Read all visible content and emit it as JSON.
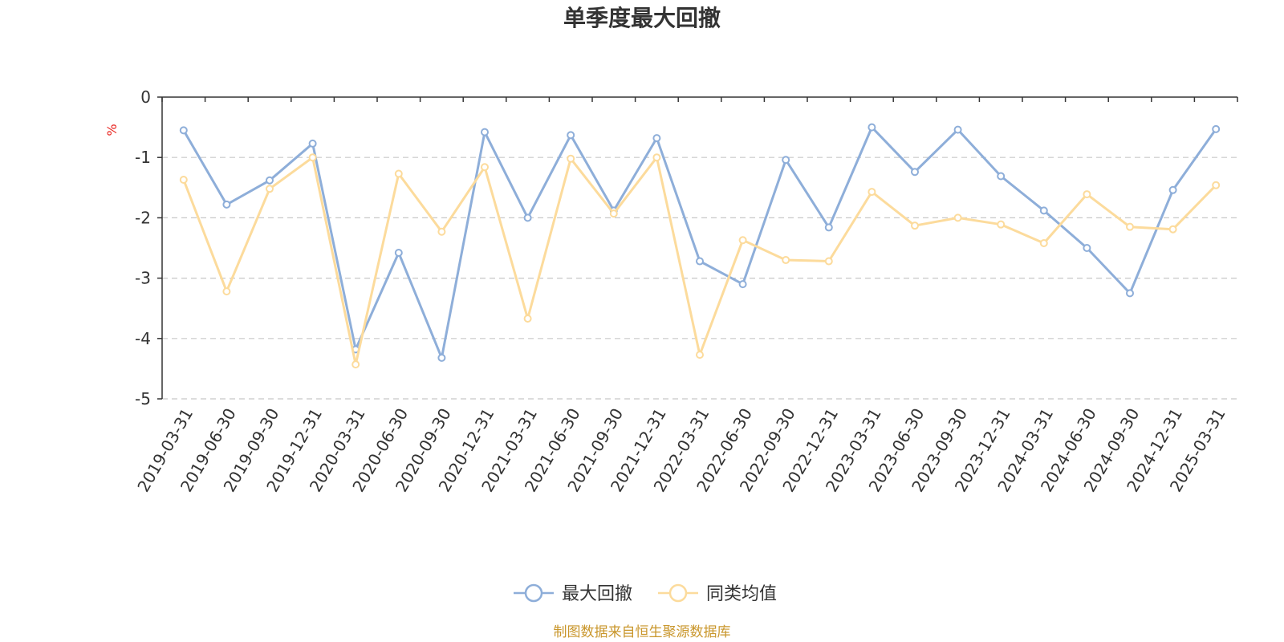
{
  "chart_data": {
    "type": "line",
    "title": "单季度最大回撤",
    "ylabel": "%",
    "ylim": [
      -5,
      0
    ],
    "yticks": [
      0,
      -1,
      -2,
      -3,
      -4,
      -5
    ],
    "grid": "horizontal-dashed",
    "legend_position": "bottom",
    "categories": [
      "2019-03-31",
      "2019-06-30",
      "2019-09-30",
      "2019-12-31",
      "2020-03-31",
      "2020-06-30",
      "2020-09-30",
      "2020-12-31",
      "2021-03-31",
      "2021-06-30",
      "2021-09-30",
      "2021-12-31",
      "2022-03-31",
      "2022-06-30",
      "2022-09-30",
      "2022-12-31",
      "2023-03-31",
      "2023-06-30",
      "2023-09-30",
      "2023-12-31",
      "2024-03-31",
      "2024-06-30",
      "2024-09-30",
      "2024-12-31",
      "2025-03-31"
    ],
    "series": [
      {
        "name": "最大回撤",
        "color": "#8eaed9",
        "values": [
          -0.55,
          -1.78,
          -1.38,
          -0.77,
          -4.18,
          -2.58,
          -4.32,
          -0.58,
          -2.0,
          -0.63,
          -1.88,
          -0.68,
          -2.72,
          -3.1,
          -1.04,
          -2.16,
          -0.5,
          -1.24,
          -0.54,
          -1.31,
          -1.88,
          -2.5,
          -3.25,
          -1.54,
          -0.53
        ]
      },
      {
        "name": "同类均值",
        "color": "#fcdb9c",
        "values": [
          -1.37,
          -3.22,
          -1.52,
          -1.0,
          -4.43,
          -1.27,
          -2.23,
          -1.16,
          -3.67,
          -1.02,
          -1.93,
          -1.0,
          -4.27,
          -2.37,
          -2.7,
          -2.72,
          -1.57,
          -2.13,
          -2.0,
          -2.11,
          -2.42,
          -1.61,
          -2.15,
          -2.19,
          -1.46
        ]
      }
    ]
  },
  "footer": {
    "source": "制图数据来自恒生聚源数据库"
  }
}
